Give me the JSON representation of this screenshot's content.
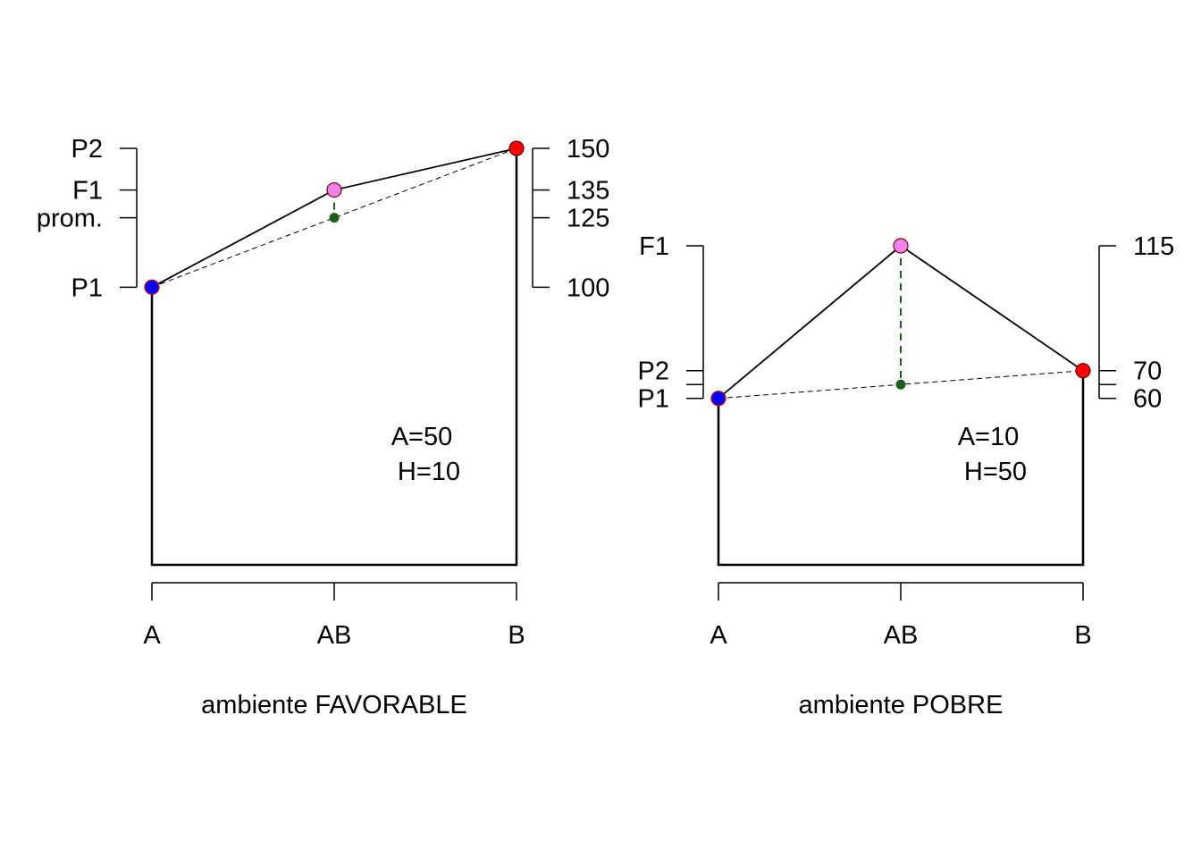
{
  "chart_data": [
    {
      "type": "line",
      "xlabel": "ambiente FAVORABLE",
      "categories": [
        "A",
        "AB",
        "B"
      ],
      "ylim": [
        0,
        150
      ],
      "points": {
        "P1": 100,
        "F1": 135,
        "P2": 150,
        "prom": 125
      },
      "point_colors": {
        "P1": "#0000ff",
        "F1": "#ee82ee",
        "P2": "#ff0000",
        "prom": "#1a5e1a"
      },
      "left_axis": [
        {
          "label": "P2",
          "value": 150
        },
        {
          "label": "F1",
          "value": 135
        },
        {
          "label": "prom.",
          "value": 125
        },
        {
          "label": "P1",
          "value": 100
        }
      ],
      "right_axis": [
        {
          "label": "150",
          "value": 150
        },
        {
          "label": "135",
          "value": 135
        },
        {
          "label": "125",
          "value": 125
        },
        {
          "label": "100",
          "value": 100
        }
      ],
      "annotations": [
        "A=50",
        "H=10"
      ]
    },
    {
      "type": "line",
      "xlabel": "ambiente POBRE",
      "categories": [
        "A",
        "AB",
        "B"
      ],
      "ylim": [
        0,
        115
      ],
      "points": {
        "P1": 60,
        "F1": 115,
        "P2": 70,
        "prom": 65
      },
      "point_colors": {
        "P1": "#0000ff",
        "F1": "#ee82ee",
        "P2": "#ff0000",
        "prom": "#1a5e1a"
      },
      "left_axis": [
        {
          "label": "F1",
          "value": 115
        },
        {
          "label": "P2",
          "value": 70
        },
        {
          "label": "",
          "value": 65
        },
        {
          "label": "P1",
          "value": 60
        }
      ],
      "right_axis": [
        {
          "label": "115",
          "value": 115
        },
        {
          "label": "70",
          "value": 70
        },
        {
          "label": "",
          "value": 65
        },
        {
          "label": "60",
          "value": 60
        }
      ],
      "annotations": [
        "A=10",
        "H=50"
      ]
    }
  ]
}
